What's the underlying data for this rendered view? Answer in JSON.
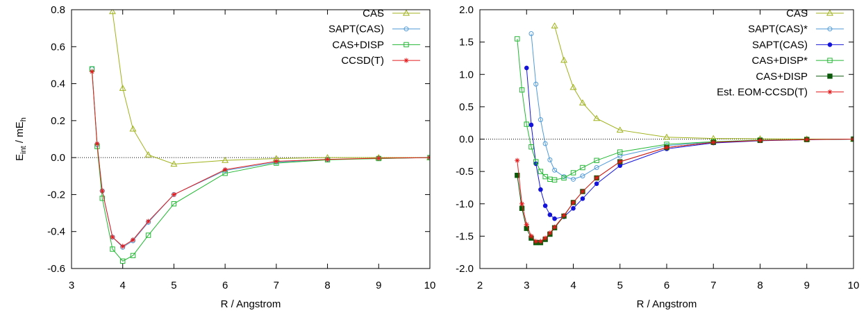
{
  "chart_data": [
    {
      "type": "line",
      "xlabel": "R / Angstrom",
      "ylabel": [
        "E",
        "int",
        " / mE",
        "h"
      ],
      "xlim": [
        3,
        10
      ],
      "ylim": [
        -0.6,
        0.8
      ],
      "xticks": [
        3,
        4,
        5,
        6,
        7,
        8,
        9,
        10
      ],
      "yticks": [
        -0.6,
        -0.4,
        -0.2,
        {
          "value": 0,
          "label": "0.0"
        },
        0.2,
        0.4,
        0.6,
        0.8
      ],
      "zero_line": true,
      "legend": "top-right",
      "series": [
        {
          "name": "CAS",
          "color": "#9fb21a",
          "marker": "triangle-open",
          "x": [
            3.8,
            4.0,
            4.2,
            4.5,
            5,
            6,
            7,
            8,
            9,
            10
          ],
          "values": [
            0.79,
            0.375,
            0.155,
            0.015,
            -0.035,
            -0.015,
            -0.005,
            0,
            0,
            0
          ]
        },
        {
          "name": "SAPT(CAS)",
          "color": "#4f9ad8",
          "marker": "circle-open",
          "x": [
            3.4,
            3.5,
            3.6,
            3.8,
            4.0,
            4.2,
            4.5,
            5,
            6,
            7,
            8,
            9,
            10
          ],
          "values": [
            0.48,
            0.07,
            -0.18,
            -0.43,
            -0.485,
            -0.45,
            -0.35,
            -0.2,
            -0.07,
            -0.025,
            -0.01,
            -0.005,
            0
          ]
        },
        {
          "name": "CAS+DISP",
          "color": "#22b833",
          "marker": "square-open",
          "x": [
            3.4,
            3.5,
            3.6,
            3.8,
            4.0,
            4.2,
            4.5,
            5,
            6,
            7,
            8,
            9,
            10
          ],
          "values": [
            0.48,
            0.06,
            -0.22,
            -0.495,
            -0.56,
            -0.53,
            -0.42,
            -0.25,
            -0.085,
            -0.03,
            -0.012,
            -0.005,
            0
          ]
        },
        {
          "name": "CCSD(T)",
          "color": "#e41a1c",
          "marker": "star",
          "x": [
            3.4,
            3.5,
            3.6,
            3.8,
            4.0,
            4.2,
            4.5,
            5,
            6,
            7,
            8,
            9,
            10
          ],
          "values": [
            0.465,
            0.075,
            -0.18,
            -0.43,
            -0.48,
            -0.445,
            -0.345,
            -0.2,
            -0.065,
            -0.02,
            -0.01,
            -0.003,
            0
          ]
        }
      ]
    },
    {
      "type": "line",
      "xlabel": "R / Angstrom",
      "xlim": [
        2,
        10
      ],
      "ylim": [
        -2,
        2
      ],
      "xticks": [
        2,
        3,
        4,
        5,
        6,
        7,
        8,
        9,
        10
      ],
      "yticks": [
        {
          "value": -2,
          "label": "-2.0"
        },
        -1.5,
        {
          "value": -1,
          "label": "-1.0"
        },
        -0.5,
        {
          "value": 0,
          "label": "0.0"
        },
        0.5,
        {
          "value": 1,
          "label": "1.0"
        },
        1.5,
        {
          "value": 2,
          "label": "2.0"
        }
      ],
      "zero_line": true,
      "legend": "top-right",
      "series": [
        {
          "name": "CAS",
          "color": "#9fb21a",
          "marker": "triangle-open",
          "x": [
            3.6,
            3.8,
            4.0,
            4.2,
            4.5,
            5,
            6,
            7,
            8,
            9,
            10
          ],
          "values": [
            1.75,
            1.22,
            0.8,
            0.56,
            0.32,
            0.14,
            0.03,
            0.01,
            0.005,
            0.002,
            0
          ]
        },
        {
          "name": "SAPT(CAS)*",
          "color": "#4f9ad8",
          "marker": "circle-open",
          "x": [
            3.1,
            3.2,
            3.3,
            3.4,
            3.5,
            3.6,
            3.8,
            4.0,
            4.2,
            4.5,
            5,
            6,
            7,
            8,
            9,
            10
          ],
          "values": [
            1.63,
            0.85,
            0.3,
            -0.07,
            -0.32,
            -0.48,
            -0.58,
            -0.62,
            -0.57,
            -0.44,
            -0.26,
            -0.1,
            -0.045,
            -0.02,
            -0.008,
            0
          ]
        },
        {
          "name": "SAPT(CAS)",
          "color": "#1414d9",
          "marker": "circle-filled",
          "x": [
            3.0,
            3.1,
            3.2,
            3.3,
            3.4,
            3.5,
            3.6,
            3.8,
            4.0,
            4.2,
            4.5,
            5,
            6,
            7,
            8,
            9,
            10
          ],
          "values": [
            1.1,
            0.22,
            -0.38,
            -0.78,
            -1.03,
            -1.17,
            -1.23,
            -1.2,
            -1.07,
            -0.92,
            -0.69,
            -0.41,
            -0.15,
            -0.06,
            -0.025,
            -0.01,
            0
          ]
        },
        {
          "name": "CAS+DISP*",
          "color": "#22b833",
          "marker": "square-open",
          "x": [
            2.8,
            2.9,
            3.0,
            3.1,
            3.2,
            3.3,
            3.4,
            3.5,
            3.6,
            3.8,
            4.0,
            4.2,
            4.5,
            5,
            6,
            7,
            8,
            9,
            10
          ],
          "values": [
            1.55,
            0.76,
            0.23,
            -0.12,
            -0.35,
            -0.5,
            -0.58,
            -0.62,
            -0.63,
            -0.6,
            -0.52,
            -0.44,
            -0.33,
            -0.2,
            -0.08,
            -0.04,
            -0.015,
            -0.005,
            0
          ]
        },
        {
          "name": "CAS+DISP",
          "color": "#0b5a0b",
          "marker": "square-filled",
          "x": [
            2.8,
            2.9,
            3.0,
            3.1,
            3.2,
            3.3,
            3.4,
            3.5,
            3.6,
            3.8,
            4.0,
            4.2,
            4.5,
            5,
            6,
            7,
            8,
            9,
            10
          ],
          "values": [
            -0.56,
            -1.07,
            -1.38,
            -1.53,
            -1.6,
            -1.6,
            -1.55,
            -1.47,
            -1.37,
            -1.19,
            -0.98,
            -0.81,
            -0.6,
            -0.35,
            -0.13,
            -0.05,
            -0.02,
            -0.007,
            0
          ]
        },
        {
          "name": "Est. EOM-CCSD(T)",
          "color": "#e41a1c",
          "marker": "star",
          "x": [
            2.8,
            2.9,
            3.0,
            3.1,
            3.2,
            3.3,
            3.4,
            3.5,
            3.6,
            3.8,
            4.0,
            4.2,
            4.5,
            5,
            6,
            7,
            8,
            9,
            10
          ],
          "values": [
            -0.33,
            -1.0,
            -1.32,
            -1.5,
            -1.58,
            -1.58,
            -1.53,
            -1.45,
            -1.36,
            -1.18,
            -0.98,
            -0.81,
            -0.6,
            -0.35,
            -0.13,
            -0.05,
            -0.02,
            -0.007,
            0
          ]
        }
      ]
    }
  ]
}
